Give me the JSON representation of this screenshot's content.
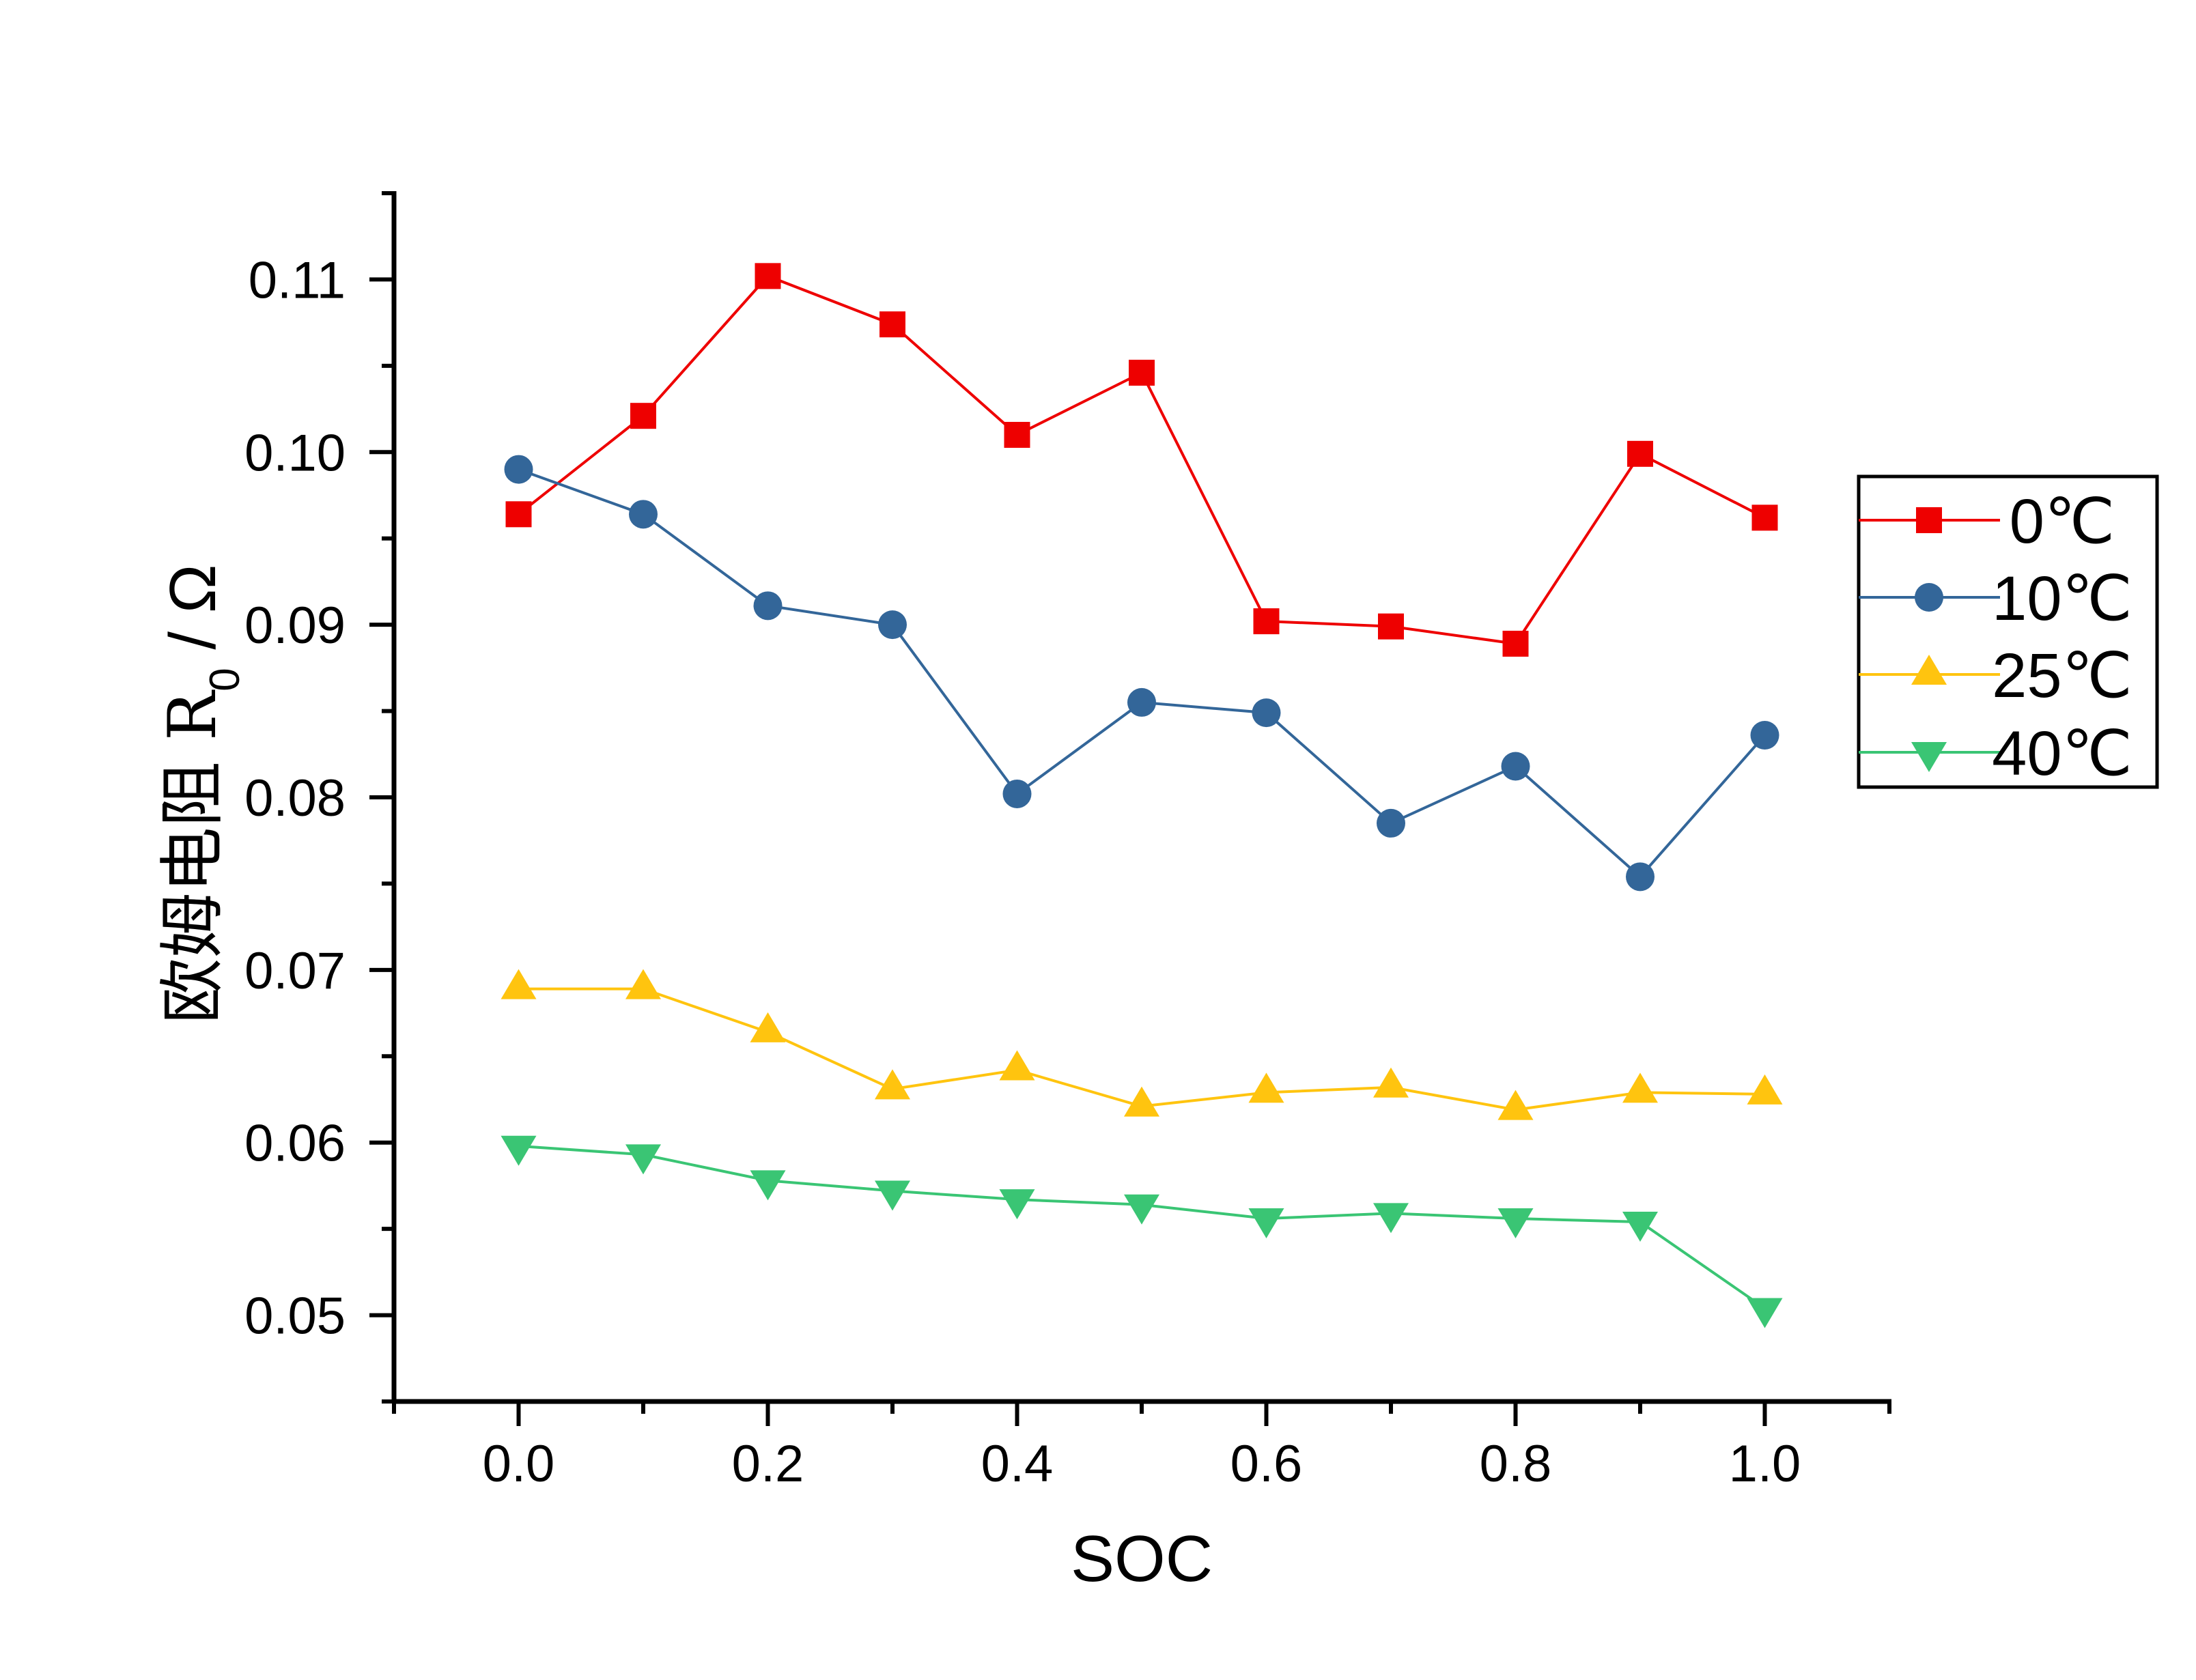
{
  "chart_data": {
    "type": "line",
    "title": "",
    "xlabel": "SOC",
    "ylabel": "欧姆电阻 R0 / Ω",
    "ylabel_parts": {
      "main": "欧姆电阻 R",
      "subscript": "0",
      "unit": " / Ω"
    },
    "xlim": [
      -0.1,
      1.1
    ],
    "ylim": [
      0.045,
      0.115
    ],
    "x": [
      0.0,
      0.1,
      0.2,
      0.3,
      0.4,
      0.5,
      0.6,
      0.7,
      0.8,
      0.9,
      1.0
    ],
    "x_major_ticks": [
      0.0,
      0.2,
      0.4,
      0.6,
      0.8,
      1.0
    ],
    "x_tick_labels": [
      "0.0",
      "0.2",
      "0.4",
      "0.6",
      "0.8",
      "1.0"
    ],
    "x_minor_ticks": [
      -0.1,
      0.1,
      0.3,
      0.5,
      0.7,
      0.9,
      1.1
    ],
    "y_major_ticks": [
      0.05,
      0.06,
      0.07,
      0.08,
      0.09,
      0.1,
      0.11
    ],
    "y_tick_labels": [
      "0.05",
      "0.06",
      "0.07",
      "0.08",
      "0.09",
      "0.10",
      "0.11"
    ],
    "y_minor_ticks": [
      0.045,
      0.055,
      0.065,
      0.075,
      0.085,
      0.095,
      0.105,
      0.115
    ],
    "grid": false,
    "legend_position": "right",
    "series": [
      {
        "name": "0℃",
        "marker": "square",
        "color": "#EE0000",
        "values": [
          0.0964,
          0.1021,
          0.1102,
          0.1074,
          0.101,
          0.1046,
          0.0902,
          0.0899,
          0.0889,
          0.0999,
          0.0962
        ]
      },
      {
        "name": "10℃",
        "marker": "circle",
        "color": "#336699",
        "values": [
          0.099,
          0.0964,
          0.0911,
          0.09,
          0.0802,
          0.0855,
          0.0849,
          0.0785,
          0.0818,
          0.0754,
          0.0836
        ]
      },
      {
        "name": "25℃",
        "marker": "triangle-up",
        "color": "#FFC40F",
        "values": [
          0.0689,
          0.0689,
          0.0664,
          0.0631,
          0.0642,
          0.0621,
          0.0629,
          0.0632,
          0.0619,
          0.0629,
          0.0628
        ]
      },
      {
        "name": "40℃",
        "marker": "triangle-down",
        "color": "#3AC574",
        "values": [
          0.0598,
          0.0593,
          0.0578,
          0.0572,
          0.0567,
          0.0564,
          0.0556,
          0.0559,
          0.0556,
          0.0554,
          0.0504
        ]
      }
    ]
  }
}
